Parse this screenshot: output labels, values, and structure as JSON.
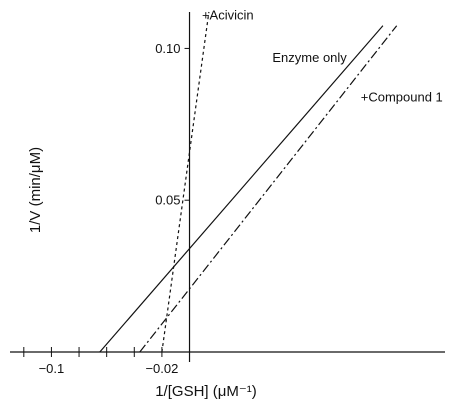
{
  "chart_data": {
    "type": "line",
    "title": "",
    "xlabel": "1/[GSH] (μM⁻¹)",
    "ylabel": "1/V (min/μM)",
    "xlim": [
      -0.13,
      0.185
    ],
    "ylim": [
      0,
      0.112
    ],
    "x_tick_labels": [
      {
        "value": -0.1,
        "label": "−0.1"
      },
      {
        "value": -0.02,
        "label": "−0.02"
      }
    ],
    "x_minor_ticks": [
      -0.12,
      -0.1,
      -0.08,
      -0.06,
      -0.04,
      -0.02
    ],
    "y_ticks": [
      {
        "value": 0.05,
        "label": "0.05"
      },
      {
        "value": 0.1,
        "label": "0.10"
      }
    ],
    "grid": false,
    "legend": "none",
    "series": [
      {
        "name": "Enzyme only",
        "style": "solid",
        "x": [
          -0.065,
          0.14
        ],
        "y": [
          0.0,
          0.1075
        ]
      },
      {
        "name": "+Acivicin",
        "style": "dashed",
        "x": [
          -0.02,
          0.014
        ],
        "y": [
          0.0,
          0.112
        ]
      },
      {
        "name": "+Compound 1",
        "style": "dashdot",
        "x": [
          -0.036,
          0.15
        ],
        "y": [
          0.0,
          0.1075
        ]
      }
    ],
    "annotations": [
      {
        "text": "+Acivicin",
        "x": 0.009,
        "y": 0.1095
      },
      {
        "text": "Enzyme only",
        "x": 0.06,
        "y": 0.0955
      },
      {
        "text": "+Compound 1",
        "x": 0.124,
        "y": 0.0825
      }
    ],
    "line_color": "#111111"
  }
}
